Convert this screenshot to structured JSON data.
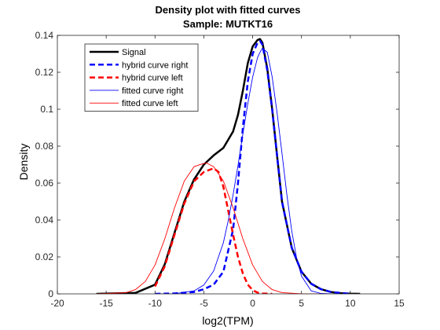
{
  "chart_data": {
    "type": "line",
    "title": "Density plot with fitted curves",
    "subtitle": "Sample: MUTKT16",
    "xlabel": "log2(TPM)",
    "ylabel": "Density",
    "xlim": [
      -20,
      15
    ],
    "ylim": [
      0,
      0.14
    ],
    "xticks": [
      -20,
      -15,
      -10,
      -5,
      0,
      5,
      10,
      15
    ],
    "yticks": [
      0,
      0.02,
      0.04,
      0.06,
      0.08,
      0.1,
      0.12,
      0.14
    ],
    "xtick_labels": [
      "-20",
      "-15",
      "-10",
      "-5",
      "0",
      "5",
      "10",
      "15"
    ],
    "ytick_labels": [
      "0",
      "0.02",
      "0.04",
      "0.06",
      "0.08",
      "0.1",
      "0.12",
      "0.14"
    ],
    "grid": false,
    "legend_position": "top-left",
    "series": [
      {
        "name": "Signal",
        "color": "#000000",
        "style": "solid-thick",
        "x": [
          -16,
          -12,
          -10,
          -9,
          -8,
          -7,
          -6,
          -5,
          -4,
          -3,
          -2,
          -1.5,
          -1,
          -0.5,
          0,
          0.5,
          0.75,
          1,
          1.5,
          2,
          2.5,
          3,
          4,
          5,
          6,
          7,
          8,
          9,
          10,
          11
        ],
        "y": [
          0,
          0.0005,
          0.005,
          0.016,
          0.033,
          0.05,
          0.062,
          0.07,
          0.075,
          0.079,
          0.088,
          0.097,
          0.11,
          0.125,
          0.134,
          0.1375,
          0.138,
          0.136,
          0.122,
          0.1,
          0.075,
          0.05,
          0.025,
          0.012,
          0.0055,
          0.0025,
          0.001,
          0.0004,
          0.0001,
          0
        ]
      },
      {
        "name": "hybrid curve right",
        "color": "#0000ff",
        "style": "dashed-thick",
        "x": [
          -10,
          -8,
          -6,
          -5,
          -4,
          -3,
          -2,
          -1.5,
          -1,
          -0.5,
          0,
          0.5,
          0.75,
          1,
          1.5,
          2,
          2.5,
          3,
          4,
          5,
          6,
          7,
          8,
          10
        ],
        "y": [
          0,
          0.0002,
          0.001,
          0.0025,
          0.005,
          0.012,
          0.035,
          0.06,
          0.09,
          0.115,
          0.13,
          0.136,
          0.137,
          0.135,
          0.121,
          0.1,
          0.075,
          0.05,
          0.025,
          0.012,
          0.0055,
          0.0025,
          0.001,
          0
        ]
      },
      {
        "name": "hybrid curve left",
        "color": "#ff0000",
        "style": "dashed-thick",
        "x": [
          -10,
          -9,
          -8,
          -7,
          -6,
          -5,
          -4,
          -3.5,
          -3,
          -2.5,
          -2,
          -1.5,
          -1,
          -0.5,
          0,
          0.5,
          1,
          2
        ],
        "y": [
          0.004,
          0.015,
          0.032,
          0.049,
          0.061,
          0.066,
          0.068,
          0.066,
          0.058,
          0.045,
          0.032,
          0.02,
          0.011,
          0.005,
          0.002,
          0.0007,
          0.0002,
          0
        ]
      },
      {
        "name": "fitted curve right",
        "color": "#0000ff",
        "style": "solid-thin",
        "x": [
          -10,
          -8,
          -6,
          -5,
          -4,
          -3,
          -2.5,
          -2,
          -1.5,
          -1,
          -0.5,
          0,
          0.5,
          0.75,
          1,
          1.5,
          2,
          2.5,
          3,
          3.5,
          4,
          4.5,
          5,
          6,
          7,
          8
        ],
        "y": [
          0,
          0.0001,
          0.0016,
          0.0048,
          0.0124,
          0.0277,
          0.0397,
          0.0537,
          0.0695,
          0.0866,
          0.1031,
          0.1175,
          0.128,
          0.1308,
          0.1331,
          0.1308,
          0.1175,
          0.0982,
          0.0761,
          0.0537,
          0.0341,
          0.0193,
          0.0096,
          0.0016,
          0.0002,
          0
        ]
      },
      {
        "name": "fitted curve left",
        "color": "#ff0000",
        "style": "solid-thin",
        "x": [
          -16,
          -13,
          -12,
          -11,
          -10,
          -9,
          -8,
          -7,
          -6,
          -5,
          -4.7,
          -4,
          -3,
          -2,
          -1,
          0,
          1,
          2,
          3,
          5,
          7
        ],
        "y": [
          0,
          0.0006,
          0.0023,
          0.0067,
          0.0156,
          0.0298,
          0.0466,
          0.0611,
          0.0689,
          0.0707,
          0.0708,
          0.0689,
          0.0611,
          0.0466,
          0.0298,
          0.0156,
          0.0067,
          0.0023,
          0.0007,
          4e-05,
          0
        ]
      }
    ]
  }
}
